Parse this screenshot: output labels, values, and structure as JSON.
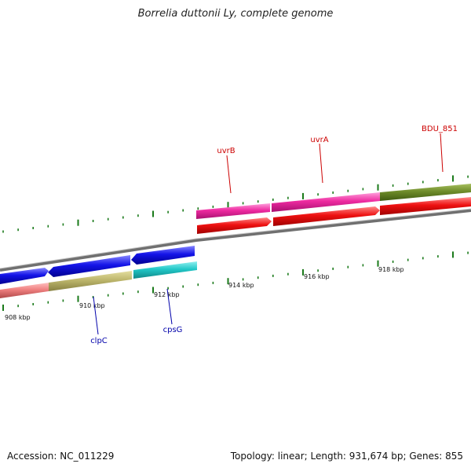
{
  "title": "Borrelia duttonii Ly, complete genome",
  "accession": "Accession: NC_011229",
  "topology": "Topology: linear; Length: 931,674 bp; Genes: 855",
  "ticks": [
    {
      "label": "908 kbp"
    },
    {
      "label": "910 kbp"
    },
    {
      "label": "912 kbp"
    },
    {
      "label": "914 kbp"
    },
    {
      "label": "916 kbp"
    },
    {
      "label": "918 kbp"
    }
  ],
  "gene_labels": [
    {
      "name": "uvrB",
      "color": "#cc0000"
    },
    {
      "name": "uvrA",
      "color": "#cc0000"
    },
    {
      "name": "BDU_851",
      "color": "#cc0000"
    },
    {
      "name": "clpC",
      "color": "#0000aa"
    },
    {
      "name": "cpsG",
      "color": "#0000aa"
    }
  ],
  "colors": {
    "backbone": "#8a8a8a",
    "tick": "#1a7a1a",
    "forward_gene": "#ee1111",
    "reverse_gene": "#1414e8",
    "uvr_category": "#ee2aa0",
    "bdu_category": "#6e8c2a",
    "clpc_category": "#bdb66c",
    "cpsg_category": "#22c8c8",
    "left_category": "#ef8080"
  }
}
